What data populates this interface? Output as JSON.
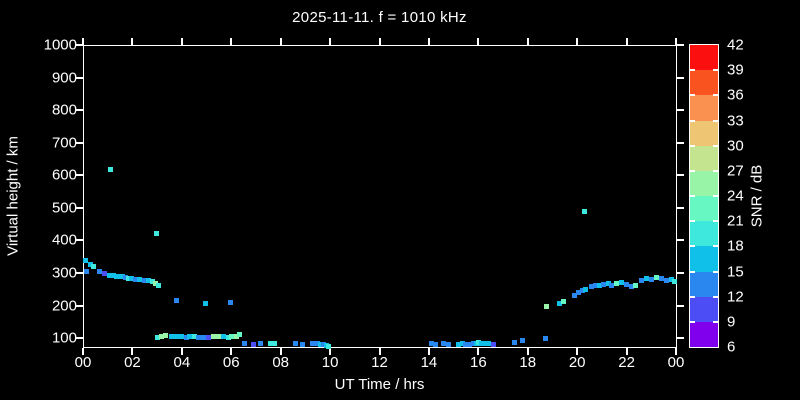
{
  "chart_data": {
    "type": "scatter",
    "title": "2025-11-11. f = 1010 kHz",
    "xlabel": "UT Time / hrs",
    "ylabel": "Virtual height / km",
    "colorbar_label": "SNR / dB",
    "xlim": [
      0,
      24
    ],
    "ylim": [
      73,
      1000
    ],
    "grid": false,
    "background": "#000000",
    "axis_color": "#ffffff",
    "text_color": "#ffffff",
    "x_tick_hours": [
      0,
      2,
      4,
      6,
      8,
      10,
      12,
      14,
      16,
      18,
      20,
      22,
      24
    ],
    "x_tick_labels": [
      "00",
      "02",
      "04",
      "06",
      "08",
      "10",
      "12",
      "14",
      "16",
      "18",
      "20",
      "22",
      "00"
    ],
    "y_ticks": [
      100,
      200,
      300,
      400,
      500,
      600,
      700,
      800,
      900,
      1000
    ],
    "colorbar": {
      "min": 6,
      "max": 42,
      "step": 3,
      "tick_labels": [
        "6",
        "9",
        "12",
        "15",
        "18",
        "21",
        "24",
        "27",
        "30",
        "33",
        "36",
        "39",
        "42"
      ],
      "segment_colors_low_to_high": [
        "#8000ee",
        "#4d4df5",
        "#2b87f0",
        "#10c0e8",
        "#3ee8dd",
        "#66f7c3",
        "#98f5a8",
        "#c4e48f",
        "#eec573",
        "#fa9150",
        "#f9531f",
        "#fb0f0f"
      ]
    },
    "palette": {
      "purple": "#8000ee",
      "violet": "#4d4df5",
      "blue": "#2b87f0",
      "cyan": "#10c0e8",
      "teal": "#3ee8dd",
      "mint": "#66f7c3",
      "green": "#98f5a8"
    },
    "points_t_h_snrclass": [
      [
        0.12,
        337,
        "cyan"
      ],
      [
        0.14,
        306,
        "blue"
      ],
      [
        0.32,
        325,
        "cyan"
      ],
      [
        0.44,
        319,
        "teal"
      ],
      [
        0.65,
        306,
        "blue"
      ],
      [
        0.89,
        300,
        "violet"
      ],
      [
        1.09,
        294,
        "cyan"
      ],
      [
        1.25,
        291,
        "cyan"
      ],
      [
        1.37,
        290,
        "cyan"
      ],
      [
        1.49,
        290,
        "cyan"
      ],
      [
        1.61,
        288,
        "cyan"
      ],
      [
        1.72,
        285,
        "blue"
      ],
      [
        1.86,
        282,
        "teal"
      ],
      [
        1.98,
        282,
        "cyan"
      ],
      [
        2.14,
        280,
        "blue"
      ],
      [
        2.3,
        279,
        "cyan"
      ],
      [
        2.5,
        278,
        "blue"
      ],
      [
        2.67,
        277,
        "cyan"
      ],
      [
        2.83,
        274,
        "teal"
      ],
      [
        2.95,
        268,
        "green"
      ],
      [
        3.05,
        261,
        "teal"
      ],
      [
        1.13,
        617,
        "teal"
      ],
      [
        2.97,
        420,
        "teal"
      ],
      [
        3.8,
        217,
        "blue"
      ],
      [
        4.97,
        208,
        "cyan"
      ],
      [
        5.98,
        211,
        "blue"
      ],
      [
        3.03,
        103,
        "teal"
      ],
      [
        3.19,
        105,
        "green"
      ],
      [
        3.35,
        108,
        "green"
      ],
      [
        3.6,
        104,
        "cyan"
      ],
      [
        3.8,
        104,
        "cyan"
      ],
      [
        4.0,
        104,
        "cyan"
      ],
      [
        4.2,
        103,
        "blue"
      ],
      [
        4.32,
        104,
        "cyan"
      ],
      [
        4.53,
        105,
        "teal"
      ],
      [
        4.69,
        103,
        "blue"
      ],
      [
        4.89,
        103,
        "blue"
      ],
      [
        5.09,
        102,
        "violet"
      ],
      [
        5.29,
        104,
        "green"
      ],
      [
        5.49,
        105,
        "green"
      ],
      [
        5.7,
        104,
        "cyan"
      ],
      [
        5.9,
        103,
        "teal"
      ],
      [
        6.02,
        104,
        "mint"
      ],
      [
        6.22,
        106,
        "green"
      ],
      [
        6.32,
        112,
        "mint"
      ],
      [
        6.55,
        85,
        "blue"
      ],
      [
        6.9,
        82,
        "violet"
      ],
      [
        7.2,
        85,
        "blue"
      ],
      [
        7.6,
        83,
        "teal"
      ],
      [
        7.75,
        83,
        "teal"
      ],
      [
        8.6,
        85,
        "blue"
      ],
      [
        8.9,
        82,
        "blue"
      ],
      [
        9.3,
        85,
        "blue"
      ],
      [
        9.5,
        83,
        "blue"
      ],
      [
        9.62,
        80,
        "cyan"
      ],
      [
        9.72,
        82,
        "blue"
      ],
      [
        9.85,
        78,
        "cyan"
      ],
      [
        9.95,
        76,
        "teal"
      ],
      [
        14.1,
        83,
        "blue"
      ],
      [
        14.25,
        80,
        "blue"
      ],
      [
        14.6,
        83,
        "blue"
      ],
      [
        14.8,
        81,
        "blue"
      ],
      [
        15.2,
        80,
        "cyan"
      ],
      [
        15.35,
        83,
        "cyan"
      ],
      [
        15.5,
        81,
        "blue"
      ],
      [
        15.65,
        81,
        "blue"
      ],
      [
        15.8,
        83,
        "blue"
      ],
      [
        15.92,
        84,
        "cyan"
      ],
      [
        16.02,
        86,
        "teal"
      ],
      [
        16.12,
        83,
        "cyan"
      ],
      [
        16.25,
        83,
        "cyan"
      ],
      [
        16.4,
        84,
        "cyan"
      ],
      [
        16.6,
        82,
        "violet"
      ],
      [
        17.45,
        88,
        "blue"
      ],
      [
        17.8,
        92,
        "blue"
      ],
      [
        18.7,
        98,
        "blue"
      ],
      [
        18.75,
        196,
        "green"
      ],
      [
        19.3,
        208,
        "cyan"
      ],
      [
        19.45,
        212,
        "mint"
      ],
      [
        19.9,
        232,
        "blue"
      ],
      [
        20.05,
        241,
        "blue"
      ],
      [
        20.2,
        247,
        "blue"
      ],
      [
        20.32,
        250,
        "cyan"
      ],
      [
        20.3,
        488,
        "teal"
      ],
      [
        20.6,
        259,
        "blue"
      ],
      [
        20.75,
        262,
        "blue"
      ],
      [
        20.9,
        262,
        "cyan"
      ],
      [
        21.05,
        265,
        "blue"
      ],
      [
        21.25,
        268,
        "cyan"
      ],
      [
        21.4,
        262,
        "blue"
      ],
      [
        21.6,
        268,
        "mint"
      ],
      [
        21.8,
        271,
        "cyan"
      ],
      [
        22.0,
        265,
        "blue"
      ],
      [
        22.2,
        259,
        "blue"
      ],
      [
        22.35,
        262,
        "mint"
      ],
      [
        22.6,
        277,
        "blue"
      ],
      [
        22.8,
        283,
        "cyan"
      ],
      [
        23.0,
        280,
        "blue"
      ],
      [
        23.2,
        287,
        "mint"
      ],
      [
        23.4,
        283,
        "blue"
      ],
      [
        23.6,
        277,
        "blue"
      ],
      [
        23.8,
        280,
        "cyan"
      ],
      [
        23.95,
        274,
        "teal"
      ]
    ]
  }
}
